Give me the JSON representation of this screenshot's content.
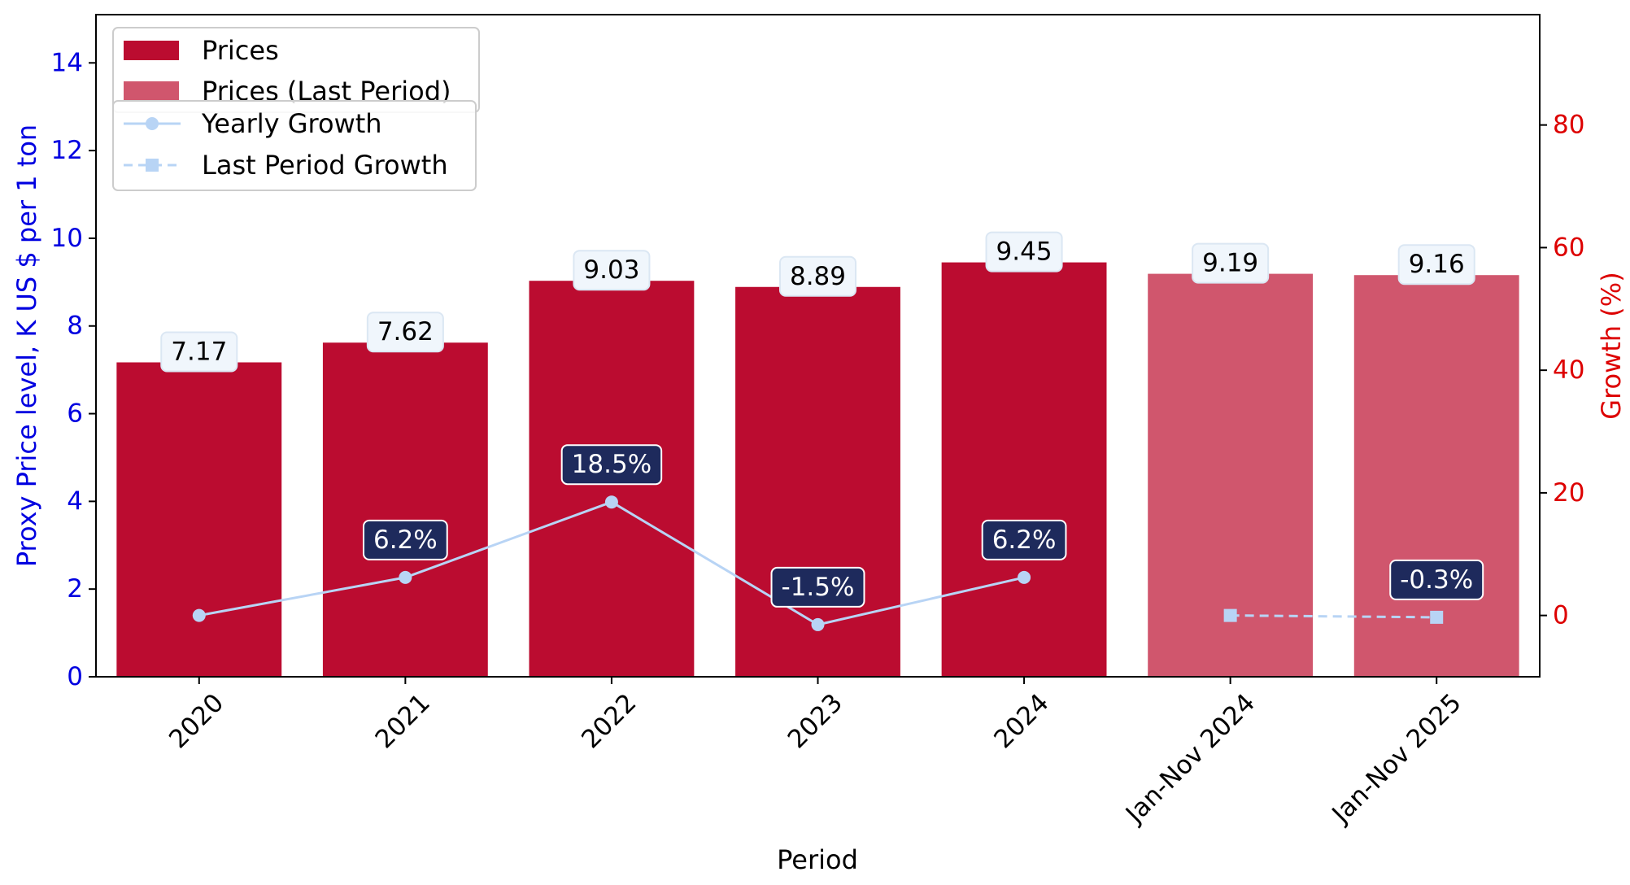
{
  "colors": {
    "bar": "#bb0c30",
    "bar_last": "#d0566d",
    "line": "#b8d4f5",
    "left_axis": "#0000e0",
    "right_axis": "#dd0000",
    "label_box": "#f0f6fc",
    "growth_box": "#1e2a5c"
  },
  "chart_data": {
    "type": "bar",
    "categories": [
      "2020",
      "2021",
      "2022",
      "2023",
      "2024",
      "Jan-Nov 2024",
      "Jan-Nov 2025"
    ],
    "series": [
      {
        "name": "Prices",
        "kind": "bar",
        "axis": "left",
        "values": [
          7.17,
          7.62,
          9.03,
          8.89,
          9.45,
          null,
          null
        ]
      },
      {
        "name": "Prices (Last Period)",
        "kind": "bar",
        "axis": "left",
        "values": [
          null,
          null,
          null,
          null,
          null,
          9.19,
          9.16
        ]
      },
      {
        "name": "Yearly Growth",
        "kind": "line",
        "axis": "right",
        "marker": "circle",
        "values": [
          0,
          6.2,
          18.5,
          -1.5,
          6.2,
          null,
          null
        ]
      },
      {
        "name": "Last Period Growth",
        "kind": "line",
        "axis": "right",
        "marker": "square",
        "dashed": true,
        "values": [
          null,
          null,
          null,
          null,
          null,
          0,
          -0.3
        ]
      }
    ],
    "bar_labels": [
      "7.17",
      "7.62",
      "9.03",
      "8.89",
      "9.45",
      "9.19",
      "9.16"
    ],
    "growth_labels": [
      "",
      "6.2%",
      "18.5%",
      "-1.5%",
      "6.2%",
      "",
      "-0.3%"
    ],
    "xlabel": "Period",
    "ylabel": "Proxy Price level, K US $ per 1 ton",
    "ylabel_right": "Growth (%)",
    "ylim": [
      0,
      15.1
    ],
    "ylim_right": [
      -10,
      98
    ],
    "yticks": [
      0,
      2,
      4,
      6,
      8,
      10,
      12,
      14
    ],
    "yticks_right": [
      0,
      20,
      40,
      60,
      80
    ],
    "grid": false,
    "legend": [
      "top-left"
    ]
  }
}
